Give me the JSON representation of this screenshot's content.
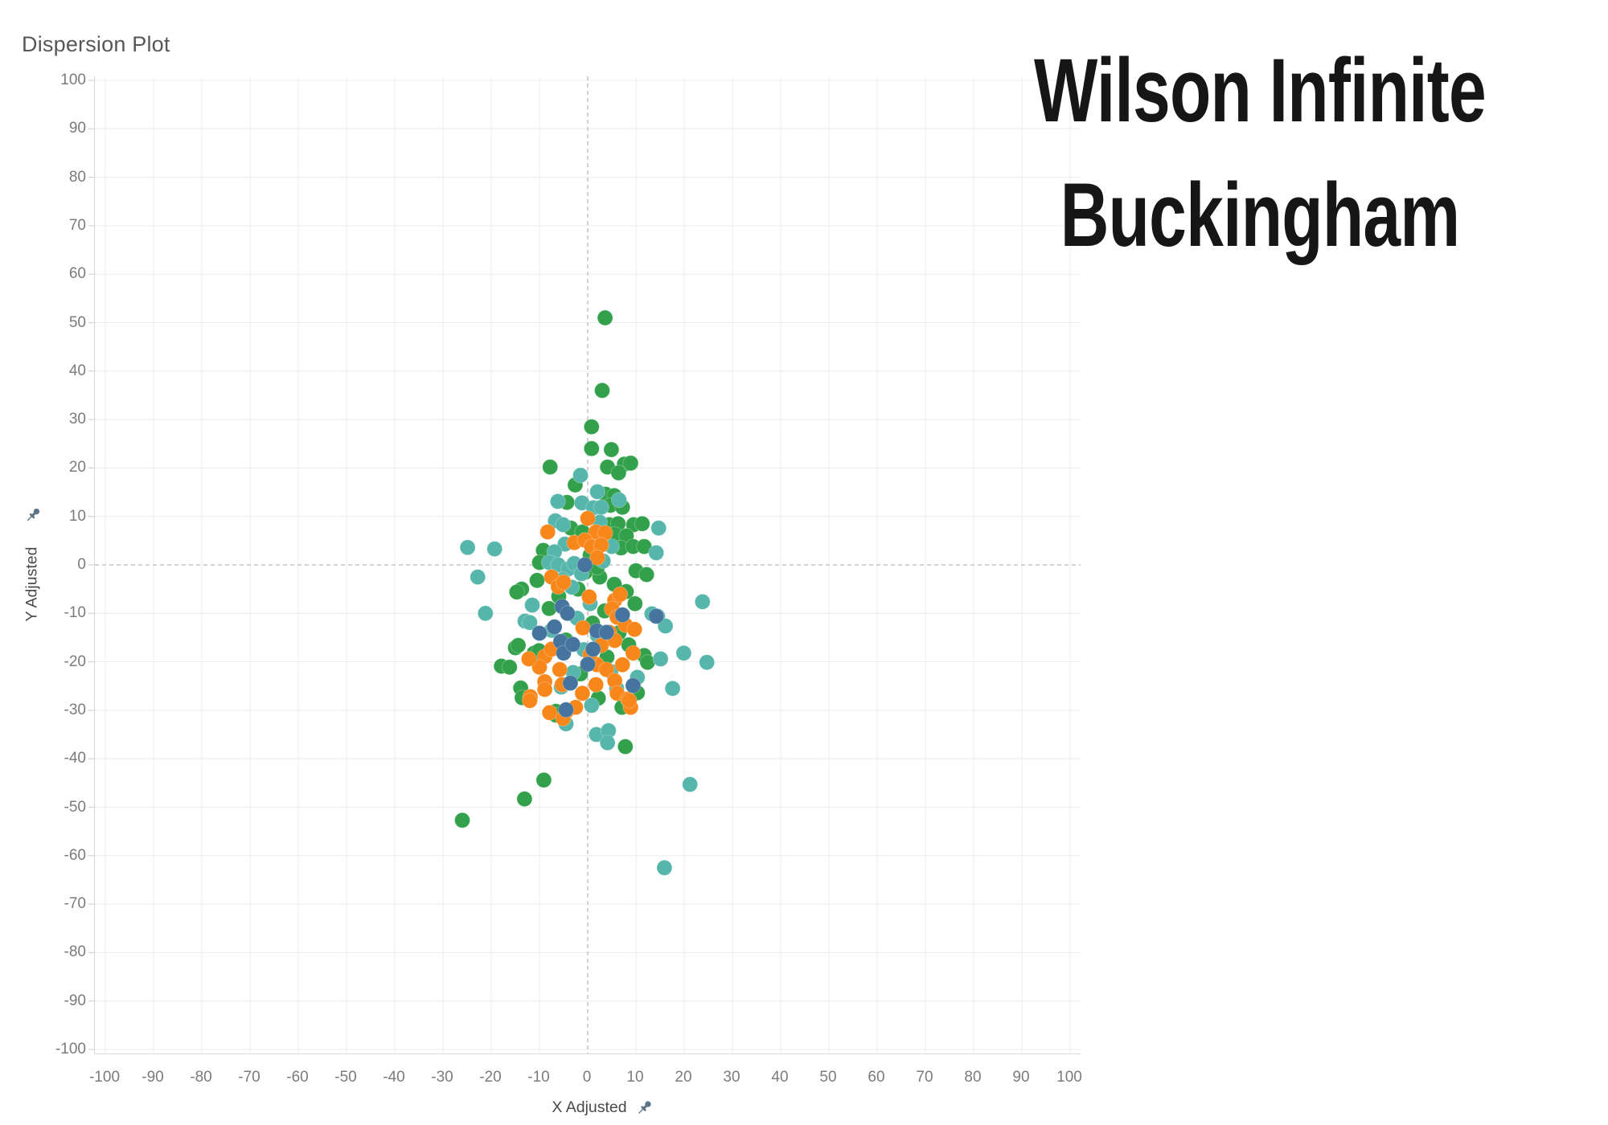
{
  "sheet": {
    "title": "Dispersion Plot"
  },
  "header": {
    "line1": "Wilson Infinite",
    "line2": "Buckingham"
  },
  "axes": {
    "x_title": "X Adjusted",
    "y_title": "Y Adjusted",
    "pin_color": "#5b7486",
    "tick_text_color": "#7b7b7b"
  },
  "chart_data": {
    "type": "scatter",
    "title": "Dispersion Plot",
    "xlabel": "X Adjusted",
    "ylabel": "Y Adjusted",
    "xlim": [
      -100,
      100
    ],
    "ylim": [
      -100,
      100
    ],
    "x_ticks": [
      -100,
      -90,
      -80,
      -70,
      -60,
      -50,
      -40,
      -30,
      -20,
      -10,
      0,
      10,
      20,
      30,
      40,
      50,
      60,
      70,
      80,
      90,
      100
    ],
    "y_ticks": [
      100,
      90,
      80,
      70,
      60,
      50,
      40,
      30,
      20,
      10,
      0,
      -10,
      -20,
      -30,
      -40,
      -50,
      -60,
      -70,
      -80,
      -90,
      -100
    ],
    "grid": true,
    "legend": "none",
    "zero_lines": "dashed",
    "style": {
      "grid_color": "#ececec",
      "zero_line_color": "#bbbbbb",
      "tick_mark_color": "#d4d4d4",
      "point_radius": 9.5
    },
    "series": [
      {
        "name": "green",
        "color": "#33a14b",
        "points": [
          [
            3.6,
            51
          ],
          [
            3,
            36
          ],
          [
            0.8,
            28.5
          ],
          [
            0.8,
            24
          ],
          [
            4.9,
            23.8
          ],
          [
            -7.8,
            20.2
          ],
          [
            4.1,
            20.2
          ],
          [
            7.6,
            20.8
          ],
          [
            8.9,
            21
          ],
          [
            6.4,
            19
          ],
          [
            -2.6,
            16.5
          ],
          [
            3.7,
            14.6
          ],
          [
            5.5,
            14.3
          ],
          [
            -4.3,
            12.9
          ],
          [
            4.7,
            12.3
          ],
          [
            7.2,
            11.9
          ],
          [
            4.5,
            8.3
          ],
          [
            6.3,
            8.5
          ],
          [
            9.5,
            8.3
          ],
          [
            -3.5,
            7.6
          ],
          [
            -1.1,
            6.8
          ],
          [
            5.6,
            6.3
          ],
          [
            8,
            6
          ],
          [
            11.3,
            8.5
          ],
          [
            6.9,
            3.5
          ],
          [
            9.4,
            3.8
          ],
          [
            11.7,
            3.8
          ],
          [
            -9.2,
            3
          ],
          [
            -10,
            0.5
          ],
          [
            10,
            -1.2
          ],
          [
            12.2,
            -2
          ],
          [
            -13.7,
            -5
          ],
          [
            -14.7,
            -5.6
          ],
          [
            -10.5,
            -3.2
          ],
          [
            -0.5,
            -1.5
          ],
          [
            2.5,
            -2.5
          ],
          [
            5.5,
            -4
          ],
          [
            8,
            -5.5
          ],
          [
            9.8,
            -8
          ],
          [
            -15,
            -17.1
          ],
          [
            -17.9,
            -20.9
          ],
          [
            -16.2,
            -21.1
          ],
          [
            -14.4,
            -16.6
          ],
          [
            -11.1,
            -18.2
          ],
          [
            -10.1,
            -17.7
          ],
          [
            -13.9,
            -25.4
          ],
          [
            -13.6,
            -27.4
          ],
          [
            -6.6,
            -30.2
          ],
          [
            -6.6,
            -31
          ],
          [
            7.1,
            -29.4
          ],
          [
            11.7,
            -18.7
          ],
          [
            12.4,
            -20.1
          ],
          [
            10.3,
            -26.4
          ],
          [
            7.8,
            -37.5
          ],
          [
            -9.1,
            -44.4
          ],
          [
            -13.1,
            -48.3
          ],
          [
            -26,
            -52.7
          ],
          [
            2,
            -0.5
          ],
          [
            0.5,
            2
          ],
          [
            -2,
            -5
          ],
          [
            3.5,
            -9.5
          ],
          [
            6.5,
            -14
          ],
          [
            8.5,
            -16.5
          ],
          [
            4,
            -19
          ],
          [
            -1.5,
            -22.5
          ],
          [
            2.2,
            -27.5
          ],
          [
            -4.5,
            -15.5
          ],
          [
            -8,
            -9
          ],
          [
            -6,
            -6.5
          ],
          [
            1,
            -12
          ]
        ]
      },
      {
        "name": "teal",
        "color": "#57b6ab",
        "points": [
          [
            -1.5,
            18.5
          ],
          [
            2,
            15.1
          ],
          [
            6.5,
            13.4
          ],
          [
            -6.2,
            13.1
          ],
          [
            -1.2,
            12.8
          ],
          [
            1.2,
            11.8
          ],
          [
            2.8,
            11.9
          ],
          [
            -6.7,
            9.1
          ],
          [
            -5.1,
            8.3
          ],
          [
            2.5,
            8.8
          ],
          [
            14.7,
            7.6
          ],
          [
            -4.7,
            4.3
          ],
          [
            5,
            3.8
          ],
          [
            -24.9,
            3.6
          ],
          [
            -19.3,
            3.3
          ],
          [
            -6.9,
            2.7
          ],
          [
            14.2,
            2.5
          ],
          [
            -8,
            0.5
          ],
          [
            -22.8,
            -2.5
          ],
          [
            -6.1,
            0
          ],
          [
            -4,
            -0.8
          ],
          [
            -2.8,
            0.3
          ],
          [
            -1.3,
            -1.8
          ],
          [
            -5.2,
            -3
          ],
          [
            -3.3,
            -4.6
          ],
          [
            -21.2,
            -10
          ],
          [
            -11.5,
            -8.3
          ],
          [
            -13,
            -11.6
          ],
          [
            -12,
            -11.9
          ],
          [
            23.8,
            -7.6
          ],
          [
            13.3,
            -10.1
          ],
          [
            14.5,
            -10.6
          ],
          [
            16.1,
            -12.6
          ],
          [
            15.1,
            -19.4
          ],
          [
            19.9,
            -18.2
          ],
          [
            24.7,
            -20.1
          ],
          [
            17.6,
            -25.5
          ],
          [
            10.3,
            -23.2
          ],
          [
            -4.5,
            -32.8
          ],
          [
            1.8,
            -35
          ],
          [
            4.3,
            -34.2
          ],
          [
            4.1,
            -36.7
          ],
          [
            21.2,
            -45.3
          ],
          [
            15.9,
            -62.5
          ],
          [
            -3,
            -22.2
          ],
          [
            -5.5,
            -25.2
          ],
          [
            0.5,
            -8
          ],
          [
            2,
            -14.5
          ],
          [
            -0.8,
            -17.5
          ],
          [
            4.8,
            -22
          ],
          [
            6,
            -25.5
          ],
          [
            -2.2,
            -11
          ],
          [
            -7.5,
            -13.5
          ],
          [
            0.8,
            -29
          ],
          [
            3.2,
            0.8
          ]
        ]
      },
      {
        "name": "orange",
        "color": "#f8871b",
        "points": [
          [
            0,
            9.6
          ],
          [
            -8.3,
            6.8
          ],
          [
            1.7,
            6.8
          ],
          [
            3.6,
            6.6
          ],
          [
            -2.8,
            4.6
          ],
          [
            -0.6,
            5.1
          ],
          [
            0.8,
            3.8
          ],
          [
            2.8,
            4.1
          ],
          [
            -7.5,
            -2.5
          ],
          [
            -6.1,
            -4.5
          ],
          [
            -5,
            -3.6
          ],
          [
            0.3,
            -6.6
          ],
          [
            5.6,
            -7.3
          ],
          [
            6.7,
            -6.1
          ],
          [
            5,
            -9.1
          ],
          [
            6.1,
            -10.8
          ],
          [
            7.8,
            -12.4
          ],
          [
            4.5,
            -13.9
          ],
          [
            5.6,
            -15.6
          ],
          [
            9.7,
            -13.3
          ],
          [
            -8.9,
            -18.9
          ],
          [
            -7.5,
            -17.4
          ],
          [
            -10,
            -21.1
          ],
          [
            -5.8,
            -21.6
          ],
          [
            2.8,
            -16.6
          ],
          [
            1.9,
            -20.6
          ],
          [
            3.9,
            -21.6
          ],
          [
            7.2,
            -20.6
          ],
          [
            -8.9,
            -24.1
          ],
          [
            -8.9,
            -25.7
          ],
          [
            -5.3,
            -24.7
          ],
          [
            1.7,
            -24.7
          ],
          [
            5.6,
            -23.9
          ],
          [
            9.4,
            -18.2
          ],
          [
            -11.9,
            -27.2
          ],
          [
            -1.1,
            -26.5
          ],
          [
            6.1,
            -26.5
          ],
          [
            8.3,
            -27.7
          ],
          [
            -4.4,
            -30.2
          ],
          [
            -7.9,
            -30.5
          ],
          [
            -5.1,
            -31.7
          ],
          [
            -2.5,
            -29.4
          ],
          [
            8.9,
            -29.4
          ],
          [
            8.6,
            -28
          ],
          [
            -12.2,
            -19.4
          ],
          [
            -12,
            -28
          ],
          [
            2,
            1.5
          ],
          [
            -1,
            -13
          ],
          [
            0.5,
            -18.5
          ]
        ]
      },
      {
        "name": "blue",
        "color": "#45759f",
        "points": [
          [
            -0.6,
            0
          ],
          [
            -5.3,
            -8.6
          ],
          [
            -4.2,
            -10
          ],
          [
            14.2,
            -10.6
          ],
          [
            -10,
            -14.1
          ],
          [
            -6.9,
            -12.8
          ],
          [
            -5.6,
            -15.8
          ],
          [
            1.9,
            -13.6
          ],
          [
            3.9,
            -13.9
          ],
          [
            -5,
            -18.2
          ],
          [
            -3.1,
            -16.4
          ],
          [
            7.2,
            -10.3
          ],
          [
            1.1,
            -17.4
          ],
          [
            0,
            -20.5
          ],
          [
            9.4,
            -24.9
          ],
          [
            -3.6,
            -24.4
          ],
          [
            -4.5,
            -29.9
          ]
        ]
      }
    ]
  }
}
